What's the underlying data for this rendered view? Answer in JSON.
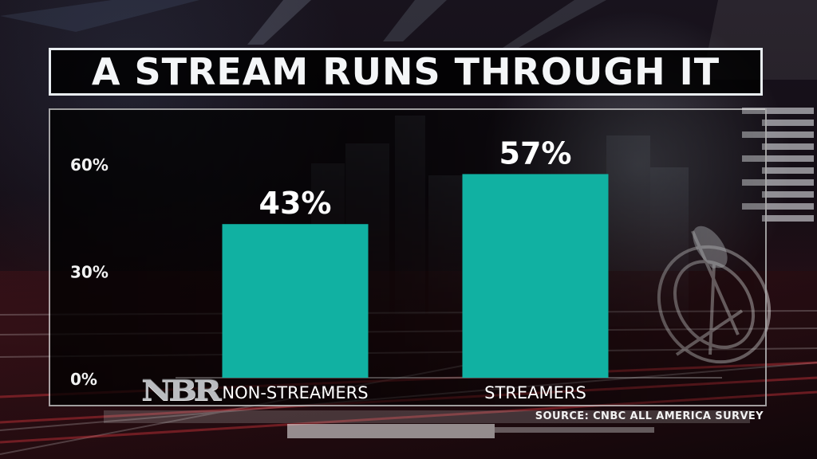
{
  "title": "A STREAM RUNS THROUGH IT",
  "source": "SOURCE: CNBC ALL AMERICA SURVEY",
  "logo": {
    "text": "NBR",
    "icon": "nbr-logo-icon"
  },
  "colors": {
    "bar": "#11b1a2",
    "title_border": "#e9edf1",
    "text": "#f4f6f8",
    "panel": "#000000"
  },
  "chart_data": {
    "type": "bar",
    "title": "A STREAM RUNS THROUGH IT",
    "categories": [
      "NON-STREAMERS",
      "STREAMERS"
    ],
    "values": [
      43,
      57
    ],
    "data_labels": [
      "43%",
      "57%"
    ],
    "xlabel": "",
    "ylabel": "",
    "ylim": [
      0,
      60
    ],
    "yticks": [
      0,
      30,
      60
    ],
    "ytick_labels": [
      "0%",
      "30%",
      "60%"
    ],
    "grid": false,
    "legend": "none"
  }
}
